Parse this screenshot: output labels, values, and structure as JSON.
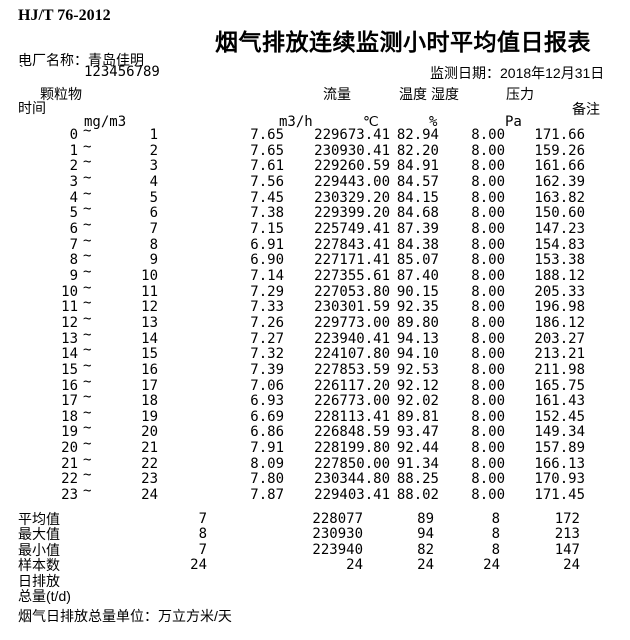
{
  "header": {
    "standard": "HJ/T 76-2012",
    "title": "烟气排放连续监测小时平均值日报表",
    "plant_label": "电厂名称：",
    "plant_name": "青岛佳明",
    "tick": "`",
    "plant_code": "123456789",
    "date_label": "监测日期：",
    "date_value": "2018年12月31日"
  },
  "columns": {
    "time": "时间",
    "pm": "颗粒物",
    "flow": "流量",
    "temp": "温度",
    "humidity": "湿度",
    "pressure": "压力",
    "remark": "备注",
    "units": {
      "pm": "mg/m3",
      "flow": "m3/h",
      "temp": "℃",
      "humidity": "%",
      "pressure": "Pa"
    }
  },
  "table": {
    "tilde": "~",
    "rows": [
      {
        "start": "0",
        "end": "1",
        "values": [
          "7.65",
          "229673.41",
          "82.94",
          "8.00",
          "171.66"
        ]
      },
      {
        "start": "1",
        "end": "2",
        "values": [
          "7.65",
          "230930.41",
          "82.20",
          "8.00",
          "159.26"
        ]
      },
      {
        "start": "2",
        "end": "3",
        "values": [
          "7.61",
          "229260.59",
          "84.91",
          "8.00",
          "161.66"
        ]
      },
      {
        "start": "3",
        "end": "4",
        "values": [
          "7.56",
          "229443.00",
          "84.57",
          "8.00",
          "162.39"
        ]
      },
      {
        "start": "4",
        "end": "5",
        "values": [
          "7.45",
          "230329.20",
          "84.15",
          "8.00",
          "163.82"
        ]
      },
      {
        "start": "5",
        "end": "6",
        "values": [
          "7.38",
          "229399.20",
          "84.68",
          "8.00",
          "150.60"
        ]
      },
      {
        "start": "6",
        "end": "7",
        "values": [
          "7.15",
          "225749.41",
          "87.39",
          "8.00",
          "147.23"
        ]
      },
      {
        "start": "7",
        "end": "8",
        "values": [
          "6.91",
          "227843.41",
          "84.38",
          "8.00",
          "154.83"
        ]
      },
      {
        "start": "8",
        "end": "9",
        "values": [
          "6.90",
          "227171.41",
          "85.07",
          "8.00",
          "153.38"
        ]
      },
      {
        "start": "9",
        "end": "10",
        "values": [
          "7.14",
          "227355.61",
          "87.40",
          "8.00",
          "188.12"
        ]
      },
      {
        "start": "10",
        "end": "11",
        "values": [
          "7.29",
          "227053.80",
          "90.15",
          "8.00",
          "205.33"
        ]
      },
      {
        "start": "11",
        "end": "12",
        "values": [
          "7.33",
          "230301.59",
          "92.35",
          "8.00",
          "196.98"
        ]
      },
      {
        "start": "12",
        "end": "13",
        "values": [
          "7.26",
          "229773.00",
          "89.80",
          "8.00",
          "186.12"
        ]
      },
      {
        "start": "13",
        "end": "14",
        "values": [
          "7.27",
          "223940.41",
          "94.13",
          "8.00",
          "203.27"
        ]
      },
      {
        "start": "14",
        "end": "15",
        "values": [
          "7.32",
          "224107.80",
          "94.10",
          "8.00",
          "213.21"
        ]
      },
      {
        "start": "15",
        "end": "16",
        "values": [
          "7.39",
          "227853.59",
          "92.53",
          "8.00",
          "211.98"
        ]
      },
      {
        "start": "16",
        "end": "17",
        "values": [
          "7.06",
          "226117.20",
          "92.12",
          "8.00",
          "165.75"
        ]
      },
      {
        "start": "17",
        "end": "18",
        "values": [
          "6.93",
          "226773.00",
          "92.02",
          "8.00",
          "161.43"
        ]
      },
      {
        "start": "18",
        "end": "19",
        "values": [
          "6.69",
          "228113.41",
          "89.81",
          "8.00",
          "152.45"
        ]
      },
      {
        "start": "19",
        "end": "20",
        "values": [
          "6.86",
          "226848.59",
          "93.47",
          "8.00",
          "149.34"
        ]
      },
      {
        "start": "20",
        "end": "21",
        "values": [
          "7.91",
          "228199.80",
          "92.44",
          "8.00",
          "157.89"
        ]
      },
      {
        "start": "21",
        "end": "22",
        "values": [
          "8.09",
          "227850.00",
          "91.34",
          "8.00",
          "166.13"
        ]
      },
      {
        "start": "22",
        "end": "23",
        "values": [
          "7.80",
          "230344.80",
          "88.25",
          "8.00",
          "170.93"
        ]
      },
      {
        "start": "23",
        "end": "24",
        "values": [
          "7.87",
          "229403.41",
          "88.02",
          "8.00",
          "171.45"
        ]
      }
    ],
    "summary": [
      {
        "label": "平均值",
        "values": [
          "7",
          "228077",
          "89",
          "8",
          "172"
        ]
      },
      {
        "label": "最大值",
        "values": [
          "8",
          "230930",
          "94",
          "8",
          "213"
        ]
      },
      {
        "label": "最小值",
        "values": [
          "7",
          "223940",
          "82",
          "8",
          "147"
        ]
      },
      {
        "label": "样本数",
        "values": [
          "24",
          "24",
          "24",
          "24",
          "24"
        ]
      },
      {
        "label": "日排放",
        "values": [
          "",
          "",
          "",
          "",
          ""
        ]
      },
      {
        "label": "总量(t/d)",
        "values": [
          "",
          "",
          "",
          "",
          ""
        ]
      }
    ]
  },
  "footer": {
    "note": "烟气日排放总量单位：万立方米/天"
  }
}
